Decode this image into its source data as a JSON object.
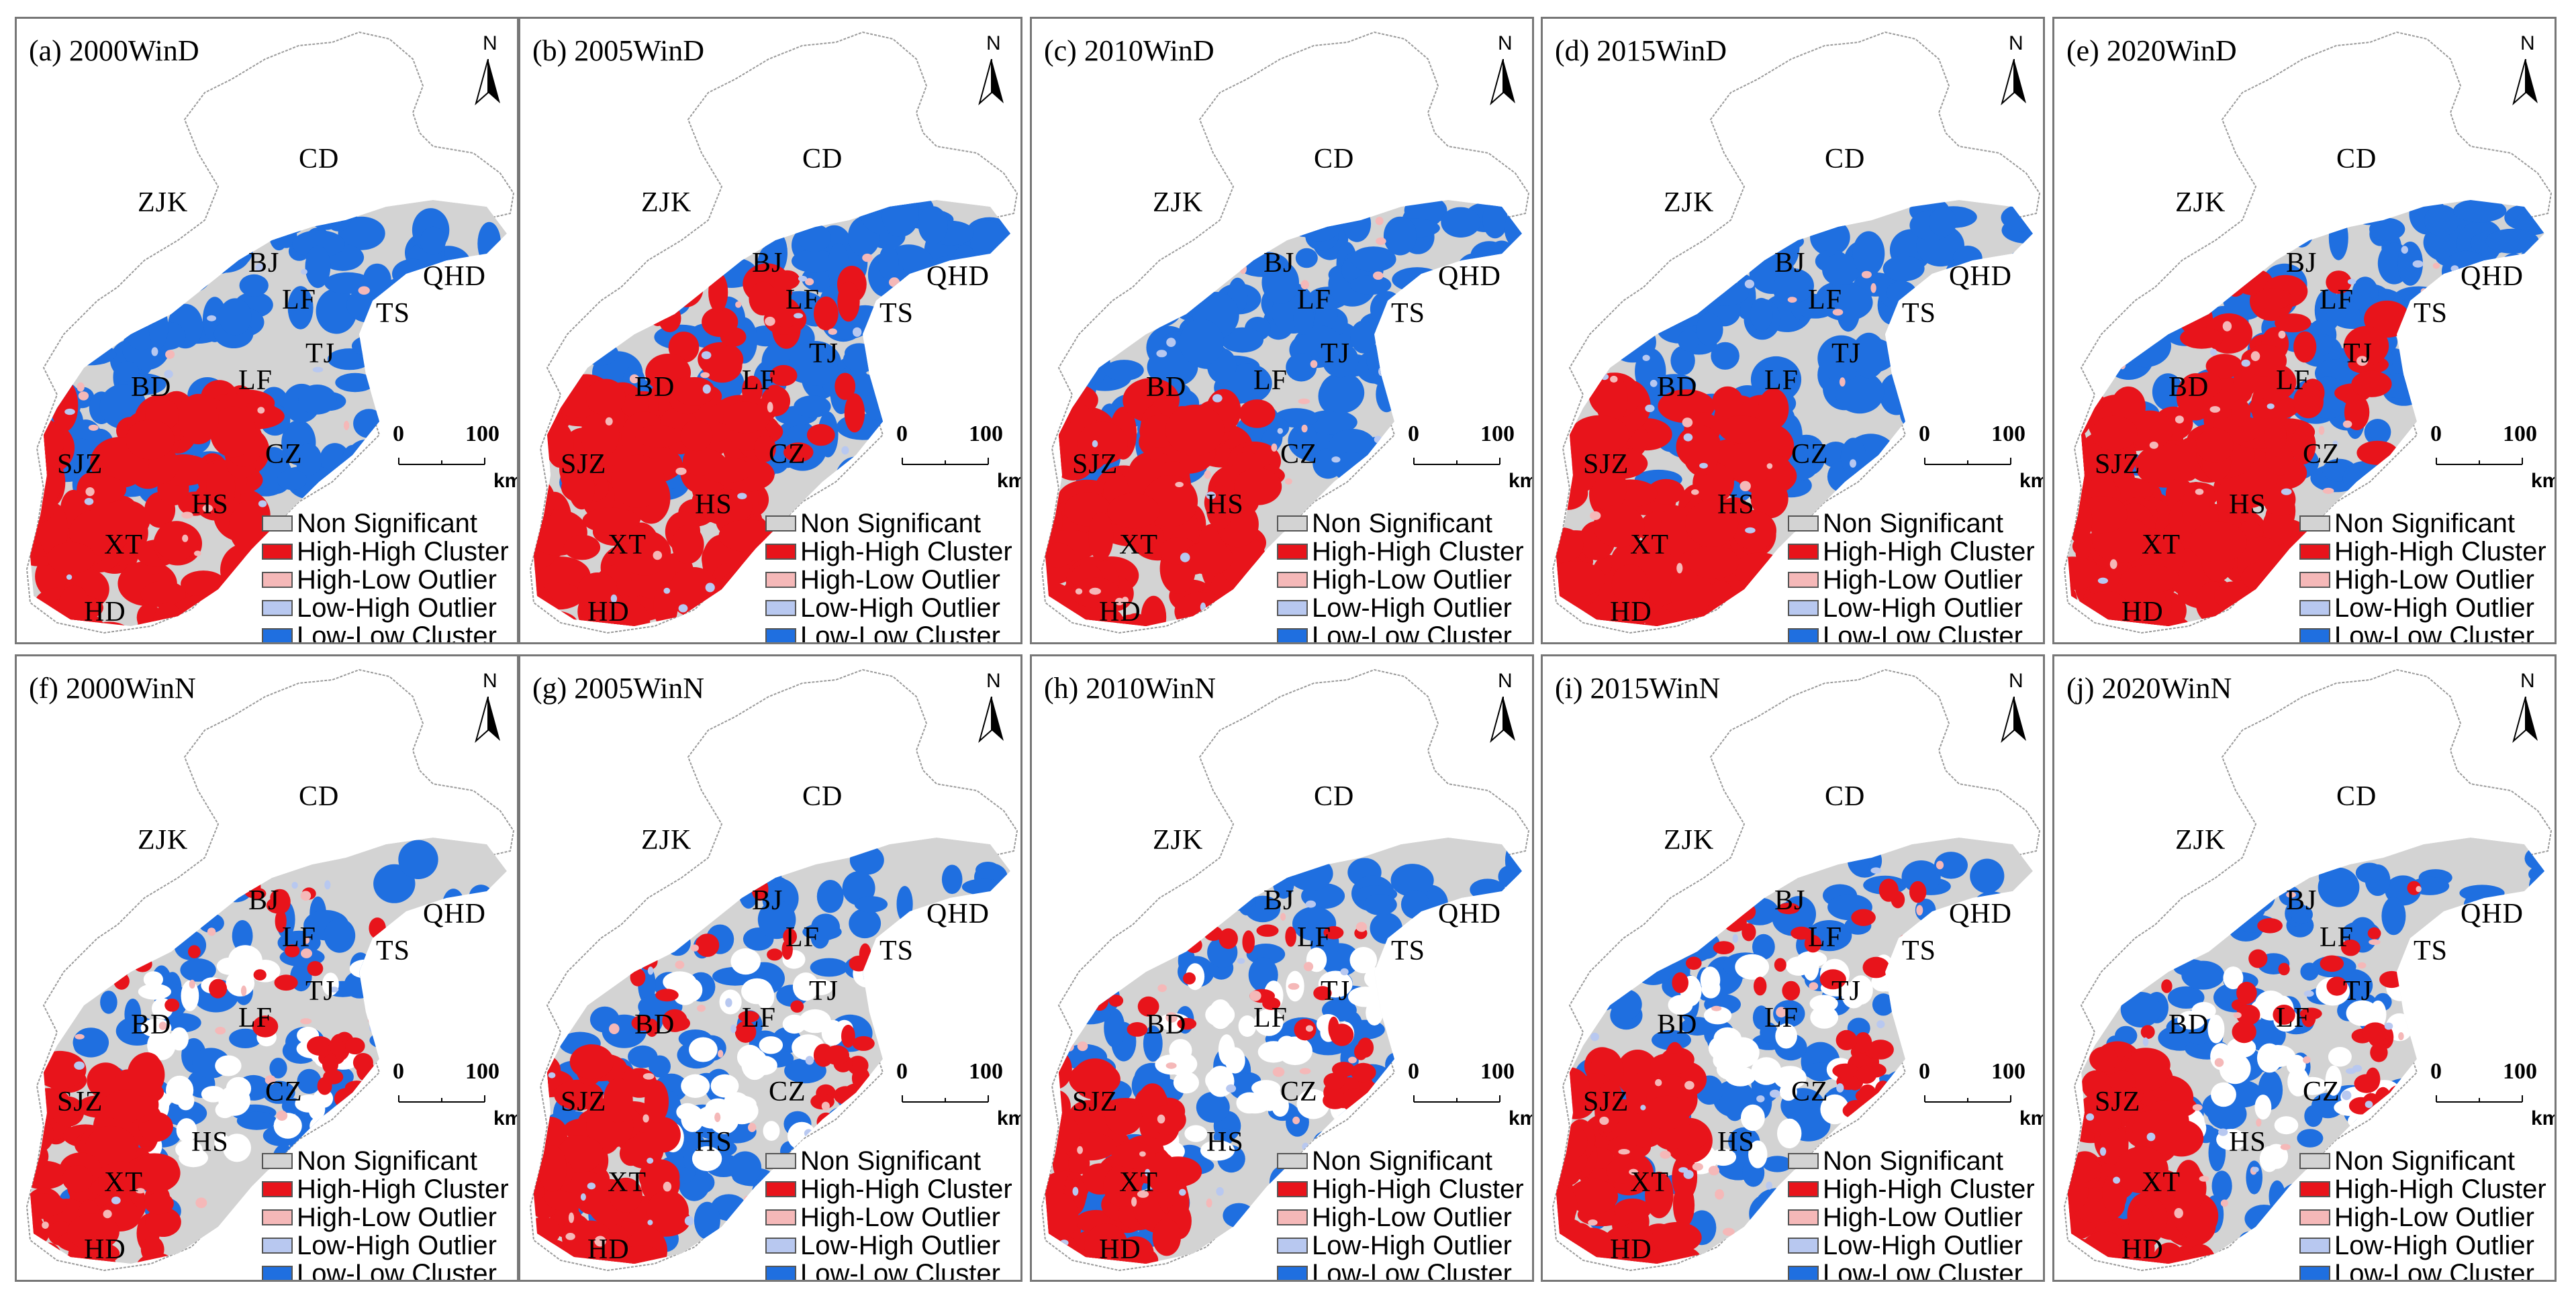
{
  "legend_items": [
    {
      "label": "Non Significant",
      "color": "#d3d3d3"
    },
    {
      "label": "High-High Cluster",
      "color": "#e8141b"
    },
    {
      "label": "High-Low Outlier",
      "color": "#f5b8b8"
    },
    {
      "label": "Low-High Outlier",
      "color": "#b8c8f0"
    },
    {
      "label": "Low-Low Cluster",
      "color": "#1f6fe0"
    }
  ],
  "north_label": "N",
  "scale": {
    "start": "0",
    "end": "100",
    "unit": "km"
  },
  "panels": [
    {
      "title": "(a) 2000WinD",
      "series": "WinD",
      "year": 2000
    },
    {
      "title": "(b) 2005WinD",
      "series": "WinD",
      "year": 2005
    },
    {
      "title": "(c) 2010WinD",
      "series": "WinD",
      "year": 2010
    },
    {
      "title": "(d) 2015WinD",
      "series": "WinD",
      "year": 2015
    },
    {
      "title": "(e) 2020WinD",
      "series": "WinD",
      "year": 2020
    },
    {
      "title": "(f) 2000WinN",
      "series": "WinN",
      "year": 2000
    },
    {
      "title": "(g) 2005WinN",
      "series": "WinN",
      "year": 2005
    },
    {
      "title": "(h) 2010WinN",
      "series": "WinN",
      "year": 2010
    },
    {
      "title": "(i) 2015WinN",
      "series": "WinN",
      "year": 2015
    },
    {
      "title": "(j) 2020WinN",
      "series": "WinN",
      "year": 2020
    }
  ],
  "city_labels": [
    "CD",
    "ZJK",
    "BJ",
    "QHD",
    "LF",
    "TS",
    "TJ",
    "BD",
    "LF",
    "CZ",
    "SJZ",
    "HS",
    "XT",
    "HD"
  ]
}
